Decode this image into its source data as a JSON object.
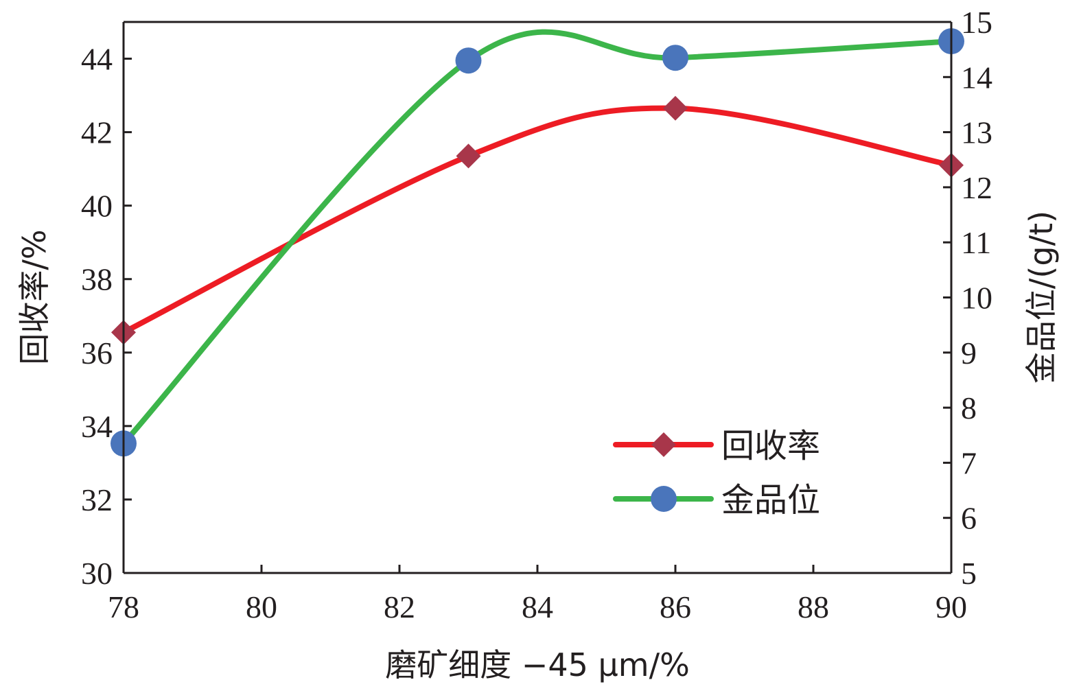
{
  "chart_data": {
    "type": "line",
    "x": [
      78,
      83,
      86,
      90
    ],
    "xlabel": "磨矿细度 −45 μm/%",
    "xlim": [
      78,
      90
    ],
    "xticks": [
      78,
      80,
      82,
      84,
      86,
      88,
      90
    ],
    "ylabel_left": "回收率/%",
    "ylim_left": [
      30,
      45
    ],
    "yticks_left": [
      30,
      32,
      34,
      36,
      38,
      40,
      42,
      44
    ],
    "ylabel_right": "金品位/(g/t)",
    "ylim_right": [
      5,
      15
    ],
    "yticks_right": [
      5,
      6,
      7,
      8,
      9,
      10,
      11,
      12,
      13,
      14,
      15
    ],
    "grid": false,
    "legend_position": "bottom-right",
    "series": [
      {
        "name": "回收率",
        "axis": "left",
        "values": [
          36.55,
          41.35,
          42.65,
          41.1
        ],
        "line_color": "#ed1c24",
        "marker": "diamond",
        "marker_color": "#a8364a"
      },
      {
        "name": "金品位",
        "axis": "right",
        "values": [
          7.35,
          14.3,
          14.35,
          14.65
        ],
        "line_color": "#3cb54a",
        "marker": "circle",
        "marker_color": "#4a75bb"
      }
    ]
  }
}
